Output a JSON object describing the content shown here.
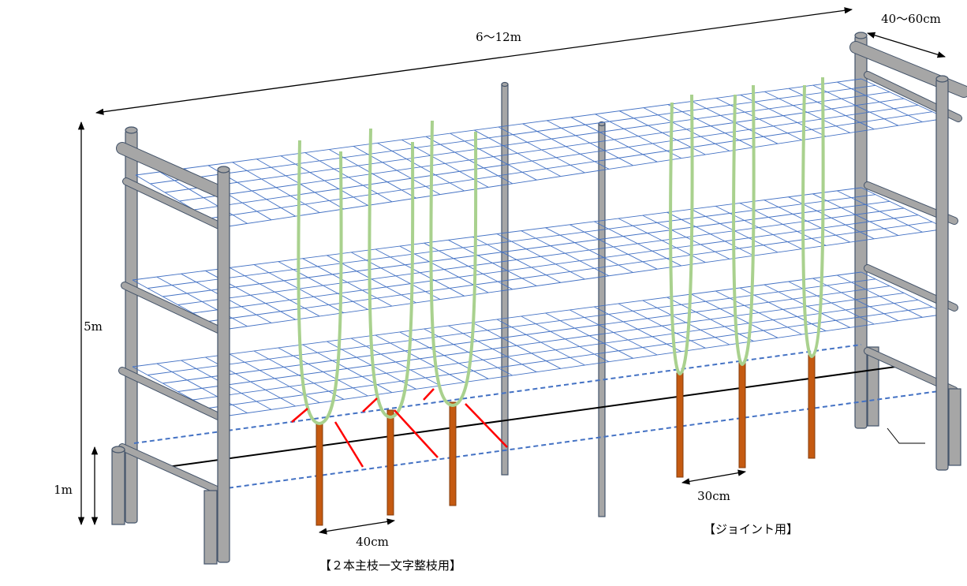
{
  "labels": {
    "length": "6～12m",
    "width": "40～60cm",
    "height": "5m",
    "ground_height": "1m",
    "spacing_two_leader": "40cm",
    "spacing_joint": "30cm",
    "joint_label": "【ジョイント用】",
    "two_leader_label": "【２本主枝一文字整枝用】"
  }
}
